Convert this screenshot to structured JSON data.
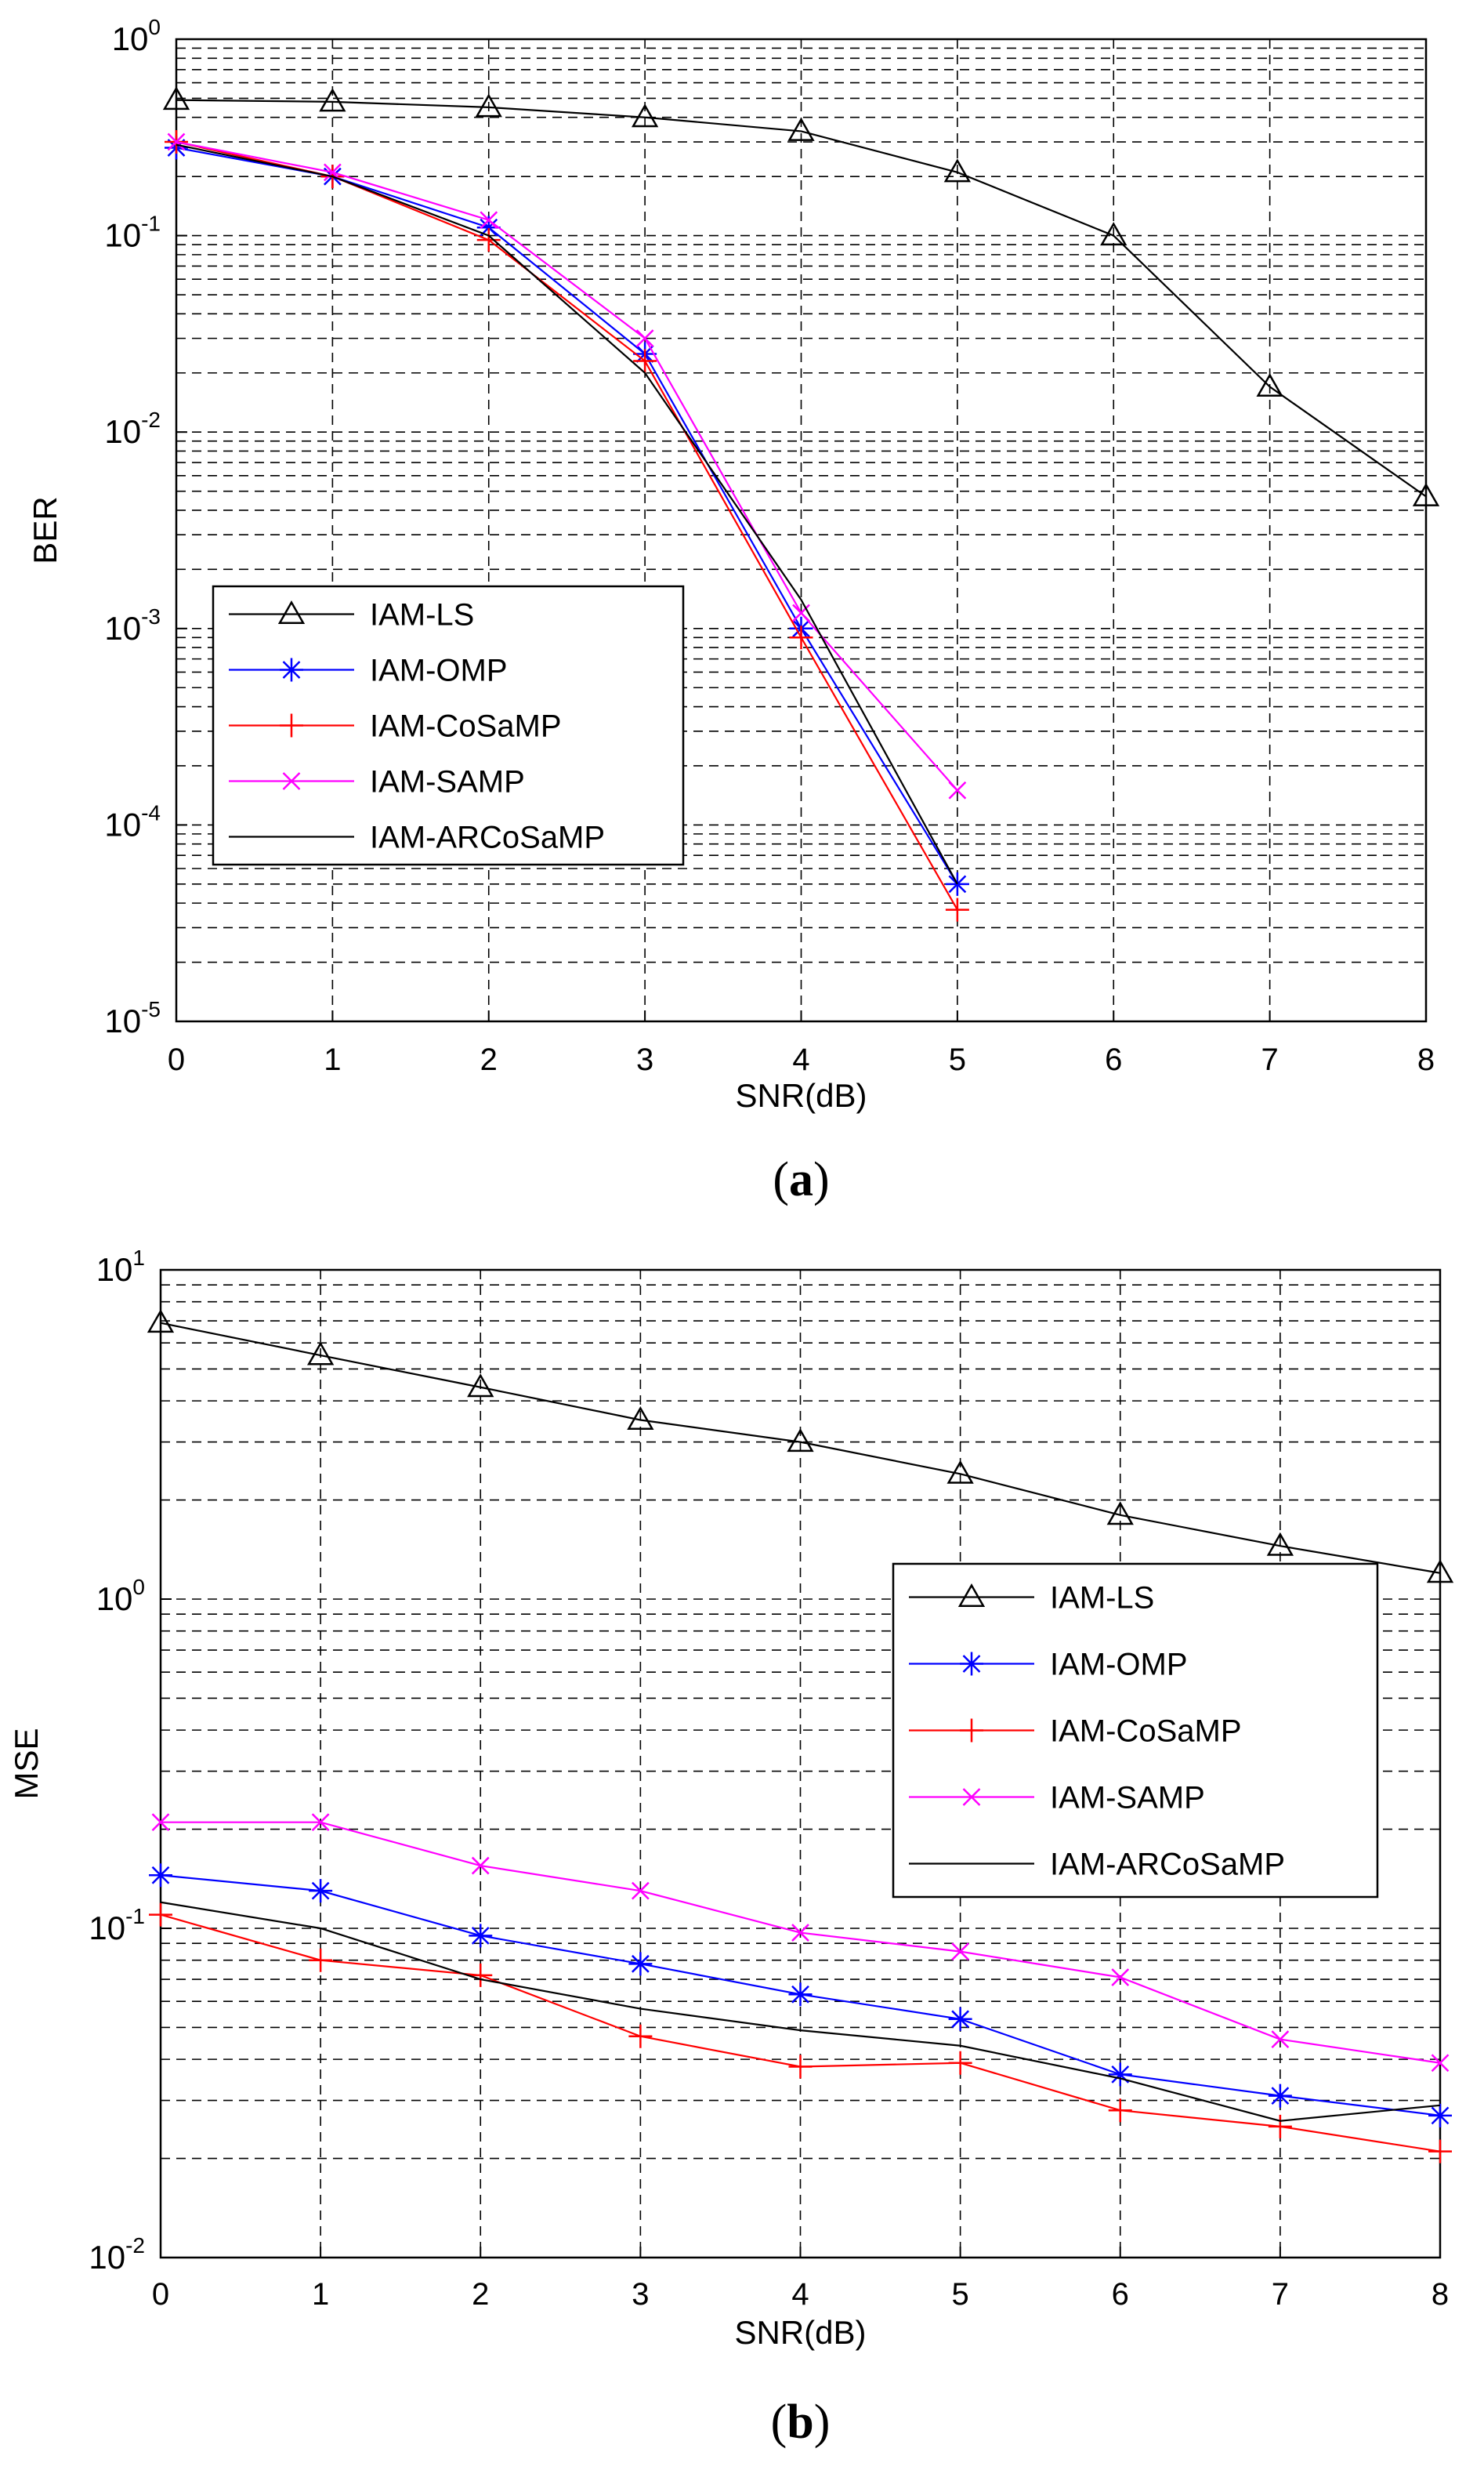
{
  "chart_data": [
    {
      "type": "line",
      "caption": "a",
      "xlabel": "SNR(dB)",
      "ylabel": "BER",
      "yscale": "log",
      "xlim": [
        0,
        8
      ],
      "ylim": [
        1e-05,
        1
      ],
      "xticks": [
        "0",
        "1",
        "2",
        "3",
        "4",
        "5",
        "6",
        "7",
        "8"
      ],
      "yticks": [
        {
          "base": "10",
          "exp": "0"
        },
        {
          "base": "10",
          "exp": "-1"
        },
        {
          "base": "10",
          "exp": "-2"
        },
        {
          "base": "10",
          "exp": "-3"
        },
        {
          "base": "10",
          "exp": "-4"
        },
        {
          "base": "10",
          "exp": "-5"
        }
      ],
      "grid": true,
      "legend_position": "lower-left",
      "series": [
        {
          "name": "IAM-LS",
          "color": "#000000",
          "marker": "triangle",
          "x": [
            0,
            1,
            2,
            3,
            4,
            5,
            6,
            7,
            8
          ],
          "y": [
            0.49,
            0.48,
            0.45,
            0.4,
            0.34,
            0.21,
            0.1,
            0.017,
            0.0047
          ]
        },
        {
          "name": "IAM-OMP",
          "color": "#0000ff",
          "marker": "star",
          "x": [
            0,
            1,
            2,
            3,
            4,
            5
          ],
          "y": [
            0.28,
            0.2,
            0.11,
            0.025,
            0.001,
            5e-05
          ]
        },
        {
          "name": "IAM-CoSaMP",
          "color": "#ff0000",
          "marker": "plus",
          "x": [
            0,
            1,
            2,
            3,
            4,
            5
          ],
          "y": [
            0.3,
            0.2,
            0.095,
            0.023,
            0.0009,
            3.7e-05
          ]
        },
        {
          "name": "IAM-SAMP",
          "color": "#ff00ff",
          "marker": "x",
          "x": [
            0,
            1,
            2,
            3,
            4,
            5
          ],
          "y": [
            0.3,
            0.21,
            0.12,
            0.03,
            0.0012,
            0.00015
          ]
        },
        {
          "name": "IAM-ARCoSaMP",
          "color": "#000000",
          "marker": "none",
          "x": [
            0,
            1,
            2,
            3,
            4,
            5
          ],
          "y": [
            0.29,
            0.2,
            0.1,
            0.02,
            0.0014,
            5e-05
          ]
        }
      ]
    },
    {
      "type": "line",
      "caption": "b",
      "xlabel": "SNR(dB)",
      "ylabel": "MSE",
      "yscale": "log",
      "xlim": [
        0,
        8
      ],
      "ylim": [
        0.01,
        10
      ],
      "xticks": [
        "0",
        "1",
        "2",
        "3",
        "4",
        "5",
        "6",
        "7",
        "8"
      ],
      "yticks": [
        {
          "base": "10",
          "exp": "1"
        },
        {
          "base": "10",
          "exp": "0"
        },
        {
          "base": "10",
          "exp": "-1"
        },
        {
          "base": "10",
          "exp": "-2"
        }
      ],
      "grid": true,
      "legend_position": "upper-right",
      "series": [
        {
          "name": "IAM-LS",
          "color": "#000000",
          "marker": "triangle",
          "x": [
            0,
            1,
            2,
            3,
            4,
            5,
            6,
            7,
            8
          ],
          "y": [
            6.9,
            5.5,
            4.4,
            3.5,
            3.0,
            2.4,
            1.8,
            1.45,
            1.2
          ]
        },
        {
          "name": "IAM-OMP",
          "color": "#0000ff",
          "marker": "star",
          "x": [
            0,
            1,
            2,
            3,
            4,
            5,
            6,
            7,
            8
          ],
          "y": [
            0.145,
            0.13,
            0.095,
            0.078,
            0.063,
            0.053,
            0.036,
            0.031,
            0.027
          ]
        },
        {
          "name": "IAM-CoSaMP",
          "color": "#ff0000",
          "marker": "plus",
          "x": [
            0,
            1,
            2,
            3,
            4,
            5,
            6,
            7,
            8
          ],
          "y": [
            0.11,
            0.08,
            0.072,
            0.047,
            0.038,
            0.039,
            0.028,
            0.025,
            0.021
          ]
        },
        {
          "name": "IAM-SAMP",
          "color": "#ff00ff",
          "marker": "x",
          "x": [
            0,
            1,
            2,
            3,
            4,
            5,
            6,
            7,
            8
          ],
          "y": [
            0.21,
            0.21,
            0.155,
            0.13,
            0.097,
            0.085,
            0.071,
            0.046,
            0.039
          ]
        },
        {
          "name": "IAM-ARCoSaMP",
          "color": "#000000",
          "marker": "none",
          "x": [
            0,
            1,
            2,
            3,
            4,
            5,
            6,
            7,
            8
          ],
          "y": [
            0.12,
            0.1,
            0.07,
            0.057,
            0.049,
            0.044,
            0.035,
            0.026,
            0.029
          ]
        }
      ]
    }
  ]
}
